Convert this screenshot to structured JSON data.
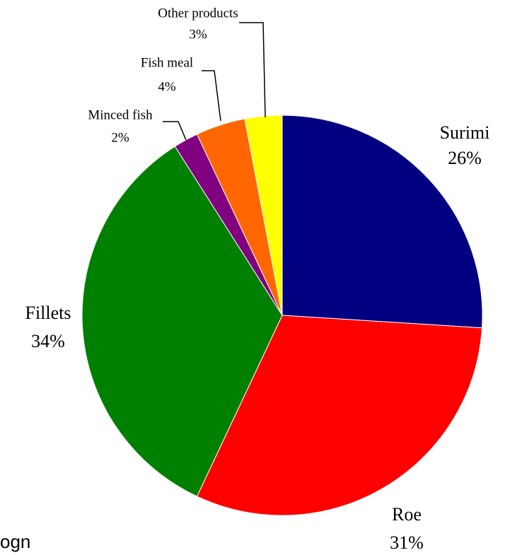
{
  "chart_data": {
    "type": "pie",
    "categories": [
      "Surimi",
      "Roe",
      "Fillets",
      "Minced fish",
      "Fish meal",
      "Other products"
    ],
    "values": [
      26,
      31,
      34,
      2,
      4,
      3
    ],
    "value_labels": [
      "26%",
      "31%",
      "34%",
      "2%",
      "4%",
      "3%"
    ],
    "colors": [
      "#000080",
      "#ff0000",
      "#008000",
      "#800080",
      "#ff6600",
      "#ffff00"
    ],
    "start_angle": 0,
    "direction": "clockwise",
    "annotations": [
      "ogn"
    ]
  }
}
